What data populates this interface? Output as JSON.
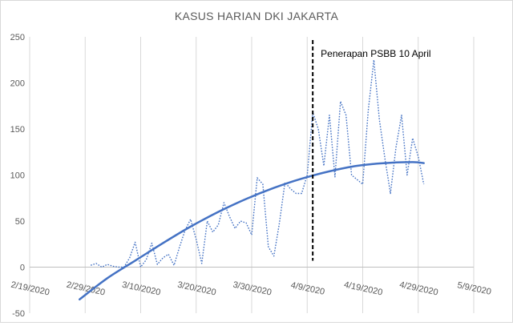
{
  "chart_data": {
    "type": "line",
    "title": "KASUS HARIAN DKI JAKARTA",
    "xlabel": "",
    "ylabel": "",
    "xlim": [
      "2020-02-19",
      "2020-05-09"
    ],
    "ylim": [
      -50,
      250
    ],
    "y_ticks": [
      -50,
      0,
      50,
      100,
      150,
      200,
      250
    ],
    "x_tick_labels": [
      "2/19/2020",
      "2/29/2020",
      "3/10/2020",
      "3/20/2020",
      "3/30/2020",
      "4/9/2020",
      "4/19/2020",
      "4/29/2020",
      "5/9/2020"
    ],
    "grid": "vertical",
    "colors": {
      "series": "#4472c4",
      "trend": "#4472c4",
      "marker_line": "#000000",
      "grid": "#d9d9d9"
    },
    "series": [
      {
        "style": "dotted",
        "x": [
          "2020-03-01",
          "2020-03-02",
          "2020-03-03",
          "2020-03-04",
          "2020-03-05",
          "2020-03-06",
          "2020-03-07",
          "2020-03-08",
          "2020-03-09",
          "2020-03-10",
          "2020-03-11",
          "2020-03-12",
          "2020-03-13",
          "2020-03-14",
          "2020-03-15",
          "2020-03-16",
          "2020-03-17",
          "2020-03-18",
          "2020-03-19",
          "2020-03-20",
          "2020-03-21",
          "2020-03-22",
          "2020-03-23",
          "2020-03-24",
          "2020-03-25",
          "2020-03-26",
          "2020-03-27",
          "2020-03-28",
          "2020-03-29",
          "2020-03-30",
          "2020-03-31",
          "2020-04-01",
          "2020-04-02",
          "2020-04-03",
          "2020-04-04",
          "2020-04-05",
          "2020-04-06",
          "2020-04-07",
          "2020-04-08",
          "2020-04-09",
          "2020-04-10",
          "2020-04-11",
          "2020-04-12",
          "2020-04-13",
          "2020-04-14",
          "2020-04-15",
          "2020-04-16",
          "2020-04-17",
          "2020-04-18",
          "2020-04-19",
          "2020-04-20",
          "2020-04-21",
          "2020-04-22",
          "2020-04-23",
          "2020-04-24",
          "2020-04-25",
          "2020-04-26",
          "2020-04-27",
          "2020-04-28",
          "2020-04-29",
          "2020-04-30"
        ],
        "values": [
          2,
          4,
          0,
          3,
          1,
          0,
          0,
          10,
          27,
          0,
          8,
          26,
          3,
          10,
          14,
          2,
          22,
          40,
          52,
          30,
          4,
          50,
          38,
          46,
          70,
          55,
          42,
          50,
          48,
          35,
          97,
          90,
          22,
          12,
          48,
          92,
          85,
          80,
          80,
          100,
          168,
          150,
          110,
          165,
          98,
          180,
          165,
          100,
          95,
          90,
          170,
          225,
          160,
          118,
          80,
          130,
          165,
          100,
          140,
          120,
          90
        ]
      },
      {
        "style": "solid",
        "x": [
          "2020-02-28",
          "2020-03-04",
          "2020-03-09",
          "2020-03-14",
          "2020-03-19",
          "2020-03-24",
          "2020-03-29",
          "2020-04-03",
          "2020-04-08",
          "2020-04-13",
          "2020-04-18",
          "2020-04-23",
          "2020-04-28",
          "2020-04-30"
        ],
        "values": [
          -35,
          -12,
          7,
          26,
          44,
          60,
          74,
          86,
          96,
          104,
          110,
          113,
          114,
          113
        ]
      }
    ],
    "annotations": [
      {
        "label": "Penerapan PSBB 10 April",
        "x": "2020-04-10",
        "style": "dashed-vertical"
      }
    ]
  }
}
